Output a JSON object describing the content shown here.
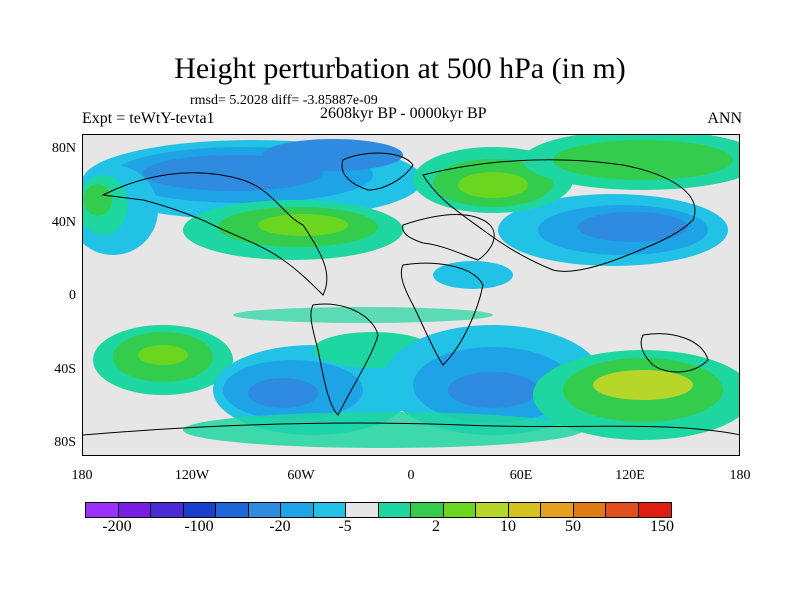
{
  "title": "Height perturbation at 500 hPa (in m)",
  "stats": "rmsd= 5.2028 diff= -3.85887e-09",
  "expt": "Expt = teWtY-tevta1",
  "period": "2608kyr BP - 0000kyr BP",
  "season": "ANN",
  "lat_labels": [
    "80N",
    "40N",
    "0",
    "40S",
    "80S"
  ],
  "lon_labels": [
    "180",
    "120W",
    "60W",
    "0",
    "60E",
    "120E",
    "180"
  ],
  "colorbar": {
    "colors": [
      "#9b30ff",
      "#7a1ee6",
      "#4a2bd6",
      "#1a3fcf",
      "#1f66d8",
      "#2e8be0",
      "#1ea3e6",
      "#22c2e6",
      "#e6e6e6",
      "#1ed6a0",
      "#33cc4d",
      "#6ad620",
      "#b6d62a",
      "#d6c21e",
      "#e6a020",
      "#e07a14",
      "#e0501e",
      "#e01e10"
    ],
    "tick_labels": [
      "-200",
      "-100",
      "-20",
      "-5",
      "2",
      "10",
      "50",
      "150"
    ]
  }
}
